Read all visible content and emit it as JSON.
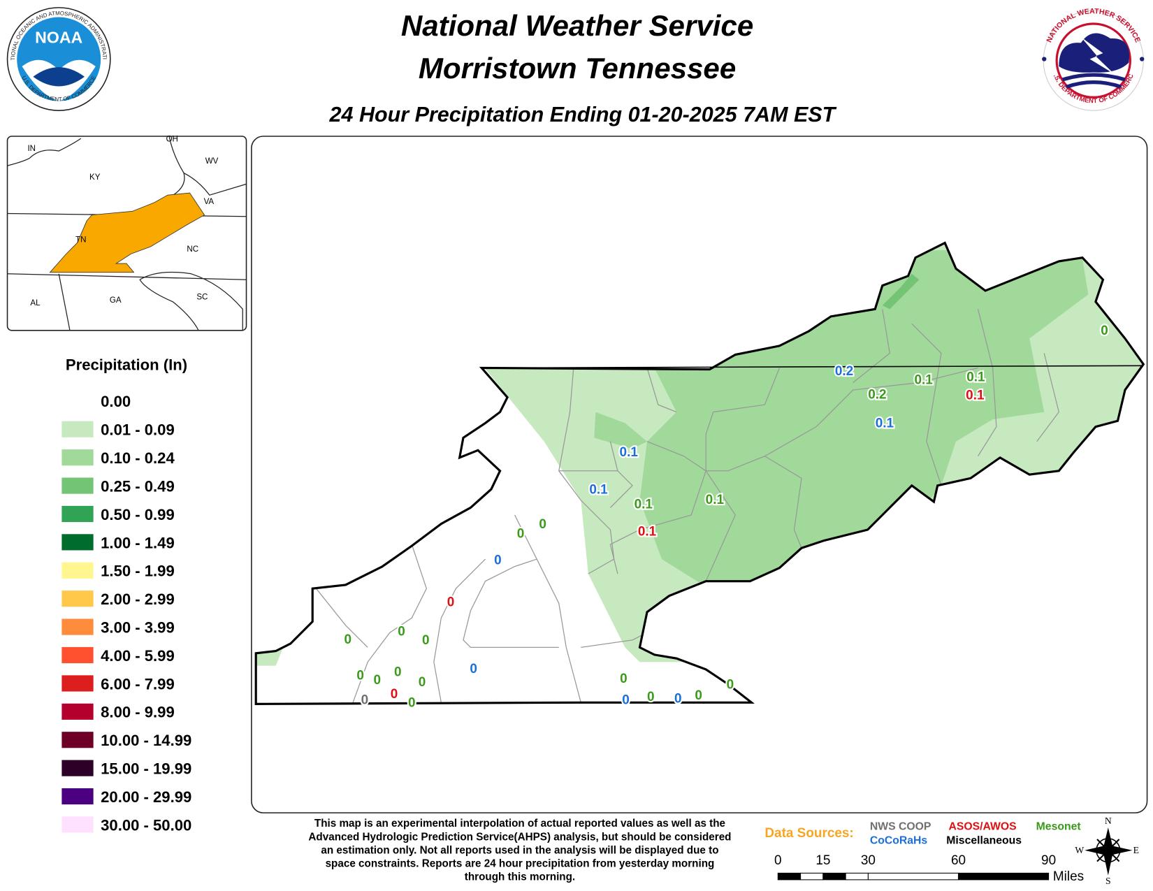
{
  "header": {
    "title_line1": "National Weather Service",
    "title_line2": "Morristown Tennessee",
    "subtitle": "24 Hour Precipitation Ending 01-20-2025 7AM EST",
    "noaa_logo": "NOAA",
    "noaa_ring": "NATIONAL OCEANIC AND ATMOSPHERIC ADMINISTRATION",
    "noaa_ring_bottom": "U.S. DEPARTMENT OF COMMERCE",
    "nws_ring": "NATIONAL WEATHER SERVICE",
    "nws_ring_bottom": "U.S. DEPARTMENT OF COMMERCE"
  },
  "inset": {
    "labels": [
      "IN",
      "OH",
      "WV",
      "KY",
      "VA",
      "TN",
      "NC",
      "AL",
      "GA",
      "SC"
    ]
  },
  "legend": {
    "title": "Precipitation (In)",
    "items": [
      {
        "label": "0.00",
        "color": "#ffffff"
      },
      {
        "label": "0.01 - 0.09",
        "color": "#c7e9c0"
      },
      {
        "label": "0.10 - 0.24",
        "color": "#a1d99b"
      },
      {
        "label": "0.25 - 0.49",
        "color": "#74c476"
      },
      {
        "label": "0.50 - 0.99",
        "color": "#31a354"
      },
      {
        "label": "1.00 - 1.49",
        "color": "#006d2c"
      },
      {
        "label": "1.50 - 1.99",
        "color": "#fff68f"
      },
      {
        "label": "2.00 - 2.99",
        "color": "#ffc84b"
      },
      {
        "label": "3.00 - 3.99",
        "color": "#ff8c3c"
      },
      {
        "label": "4.00 - 5.99",
        "color": "#ff5030"
      },
      {
        "label": "6.00 - 7.99",
        "color": "#dc1e1e"
      },
      {
        "label": "8.00 - 9.99",
        "color": "#b4002d"
      },
      {
        "label": "10.00 - 14.99",
        "color": "#6e0028"
      },
      {
        "label": "15.00 - 19.99",
        "color": "#2d0028"
      },
      {
        "label": "20.00 - 29.99",
        "color": "#4b0082"
      },
      {
        "label": "30.00 - 50.00",
        "color": "#ffe1ff"
      }
    ]
  },
  "data_sources": {
    "label": "Data Sources:",
    "label_color": "#f5a623",
    "sources": [
      {
        "name": "NWS COOP",
        "color": "#707070"
      },
      {
        "name": "CoCoRaHs",
        "color": "#1a6fd8"
      },
      {
        "name": "ASOS/AWOS",
        "color": "#e01010"
      },
      {
        "name": "Miscellaneous",
        "color": "#000000"
      },
      {
        "name": "Mesonet",
        "color": "#3a9a1a"
      }
    ]
  },
  "stations": [
    {
      "value": 0.2,
      "source": 1
    },
    {
      "value": 0.1,
      "source": 4
    },
    {
      "value": 0.1,
      "source": 4
    },
    {
      "value": 0.2,
      "source": 4
    },
    {
      "value": 0.1,
      "source": 2
    },
    {
      "value": 0.1,
      "source": 1
    },
    {
      "value": 0.1,
      "source": 1
    },
    {
      "value": 0.1,
      "source": 1
    },
    {
      "value": 0.1,
      "source": 4
    },
    {
      "value": 0.1,
      "source": 4
    },
    {
      "value": 0.1,
      "source": 2
    },
    {
      "value": 0,
      "source": 4
    },
    {
      "value": 0,
      "source": 4
    },
    {
      "value": 0,
      "source": 4
    },
    {
      "value": 0,
      "source": 1
    },
    {
      "value": 0,
      "source": 2
    },
    {
      "value": 0,
      "source": 4
    },
    {
      "value": 0,
      "source": 4
    },
    {
      "value": 0,
      "source": 4
    },
    {
      "value": 0,
      "source": 1
    },
    {
      "value": 0,
      "source": 4
    },
    {
      "value": 0,
      "source": 4
    },
    {
      "value": 0,
      "source": 4
    },
    {
      "value": 0,
      "source": 4
    },
    {
      "value": 0,
      "source": 2
    },
    {
      "value": 0,
      "source": 0
    },
    {
      "value": 0,
      "source": 4
    },
    {
      "value": 0,
      "source": 4
    },
    {
      "value": 0,
      "source": 1
    },
    {
      "value": 0,
      "source": 4
    },
    {
      "value": 0,
      "source": 1
    },
    {
      "value": 0,
      "source": 4
    },
    {
      "value": 0,
      "source": 4
    }
  ],
  "note": [
    "This map is an experimental interpolation of actual reported values as well as the",
    "Advanced Hydrologic Prediction Service(AHPS) analysis, but should be considered",
    "an estimation only. Not all reports used in the analysis will be displayed due to",
    "space constraints. Reports are 24 hour precipitation from yesterday morning",
    "through this morning."
  ],
  "scale": {
    "ticks": [
      0,
      15,
      30,
      60,
      90
    ],
    "unit": "Miles"
  },
  "compass": [
    "N",
    "E",
    "S",
    "W"
  ]
}
